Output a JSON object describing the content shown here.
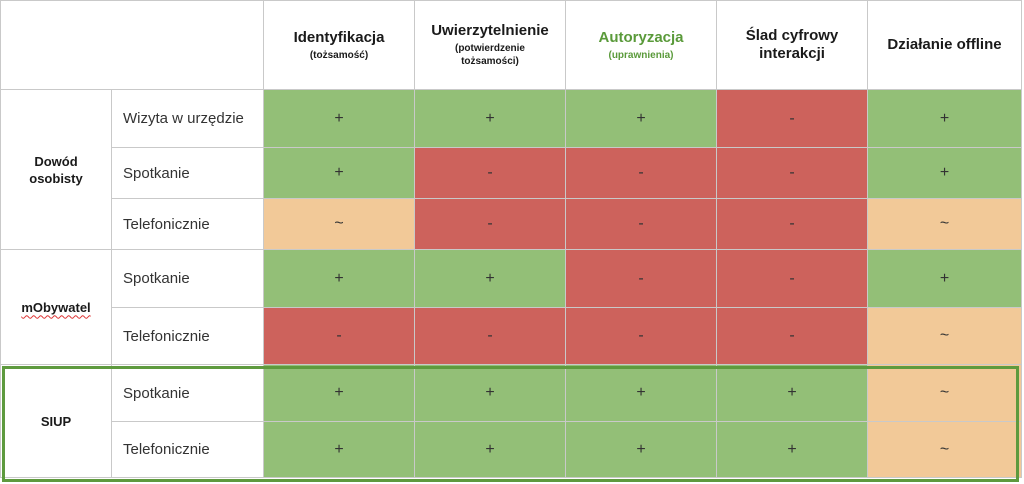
{
  "headers": [
    {
      "title": "Identyfikacja",
      "sub": "(tożsamość)"
    },
    {
      "title": "Uwierzytelnienie",
      "sub": "(potwierdzenie tożsamości)"
    },
    {
      "title": "Autoryzacja",
      "sub": "(uprawnienia)"
    },
    {
      "title": "Ślad cyfrowy interakcji",
      "sub": ""
    },
    {
      "title": "Działanie offline",
      "sub": ""
    }
  ],
  "colors": {
    "positive": "#93bf77",
    "negative": "#cd625c",
    "partial": "#f2c998",
    "highlight_border": "#5e9a3e",
    "highlight_header_text": "#5a9a3a"
  },
  "groups": [
    {
      "name": "Dowód osobisty",
      "rows": [
        {
          "method": "Wizyta w urzędzie",
          "values": [
            "+",
            "+",
            "+",
            "-",
            "+"
          ]
        },
        {
          "method": "Spotkanie",
          "values": [
            "+",
            "-",
            "-",
            "-",
            "+"
          ]
        },
        {
          "method": "Telefonicznie",
          "values": [
            "~",
            "-",
            "-",
            "-",
            "~"
          ]
        }
      ]
    },
    {
      "name": "mObywatel",
      "rows": [
        {
          "method": "Spotkanie",
          "values": [
            "+",
            "+",
            "-",
            "-",
            "+"
          ]
        },
        {
          "method": "Telefonicznie",
          "values": [
            "-",
            "-",
            "-",
            "-",
            "~"
          ]
        }
      ]
    },
    {
      "name": "SIUP",
      "rows": [
        {
          "method": "Spotkanie",
          "values": [
            "+",
            "+",
            "+",
            "+",
            "~"
          ]
        },
        {
          "method": "Telefonicznie",
          "values": [
            "+",
            "+",
            "+",
            "+",
            "~"
          ]
        }
      ]
    }
  ]
}
